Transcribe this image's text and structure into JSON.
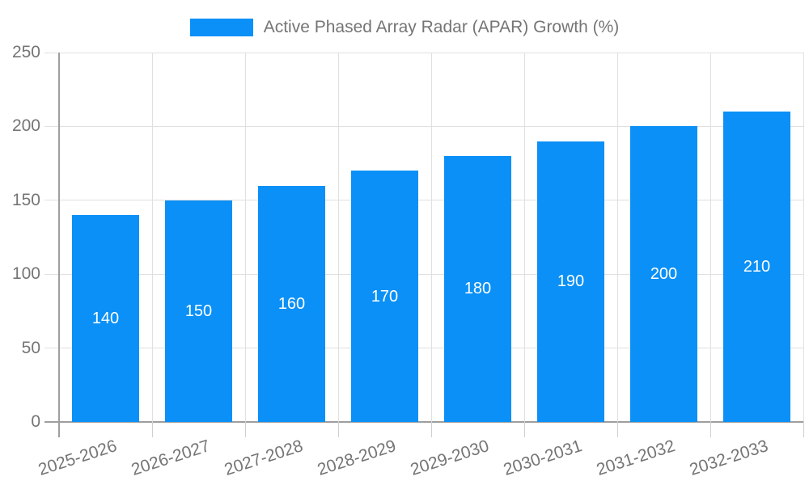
{
  "legend": {
    "label": "Active Phased Array Radar (APAR) Growth (%)"
  },
  "chart_data": {
    "type": "bar",
    "title": "",
    "categories": [
      "2025-2026",
      "2026-2027",
      "2027-2028",
      "2028-2029",
      "2029-2030",
      "2030-2031",
      "2031-2032",
      "2032-2033"
    ],
    "series": [
      {
        "name": "Active Phased Array Radar (APAR) Growth (%)",
        "values": [
          140,
          150,
          160,
          170,
          180,
          190,
          200,
          210
        ]
      }
    ],
    "xlabel": "",
    "ylabel": "",
    "ylim": [
      0,
      250
    ],
    "yticks": [
      0,
      50,
      100,
      150,
      200,
      250
    ],
    "grid": true,
    "legend_position": "top",
    "bar_value_labels_shown": true
  },
  "colors": {
    "bar": "#0a90f6",
    "axis_line": "#9e9e9e",
    "gridline": "#e0e0e0",
    "tick_text": "#757575",
    "bar_value_text": "#ffffff",
    "background": "#ffffff"
  }
}
